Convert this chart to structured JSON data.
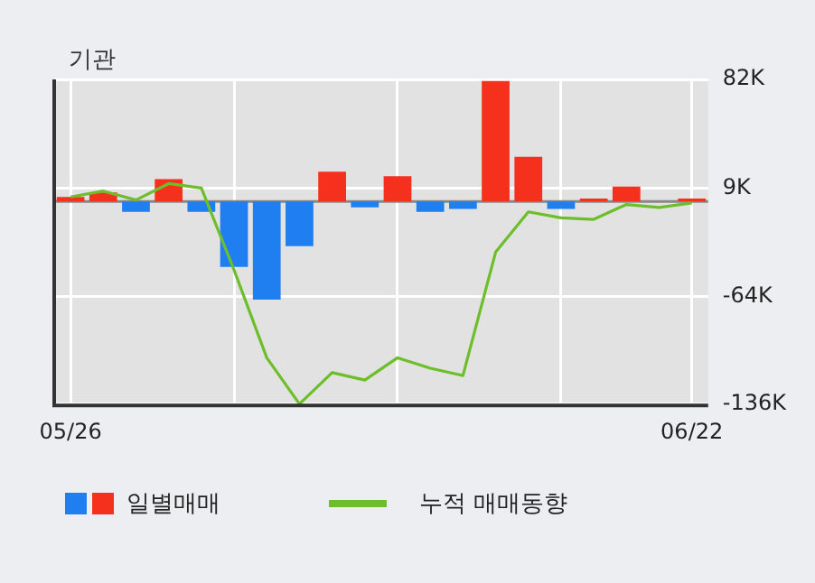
{
  "chart_data": {
    "type": "bar",
    "title": "기관",
    "categories": [
      "05/26",
      null,
      null,
      null,
      null,
      null,
      null,
      null,
      null,
      null,
      null,
      null,
      null,
      null,
      null,
      null,
      null,
      null,
      null,
      "06/22"
    ],
    "series": [
      {
        "name": "일별매매",
        "colors": [
          "#f5311d",
          "#f5311d",
          "#1f7ff0",
          "#f5311d",
          "#1f7ff0",
          "#1f7ff0",
          "#1f7ff0",
          "#1f7ff0",
          "#f5311d",
          "#1f7ff0",
          "#f5311d",
          "#1f7ff0",
          "#1f7ff0",
          "#f5311d",
          "#f5311d",
          "#1f7ff0",
          "#f5311d",
          "#f5311d",
          "#f5311d",
          "#f5311d"
        ],
        "values": [
          3,
          6,
          -7,
          15,
          -7,
          -44,
          -66,
          -30,
          20,
          -4,
          17,
          -7,
          -5,
          81,
          30,
          -5,
          2,
          10,
          0,
          2
        ]
      },
      {
        "name": "누적 매매동향",
        "type": "line",
        "color": "#6cbf2a",
        "values": [
          3,
          7,
          1,
          12,
          9,
          -46,
          -105,
          -136,
          -115,
          -120,
          -105,
          -112,
          -117,
          -34,
          -7,
          -11,
          -12,
          -2,
          -4,
          -1
        ]
      }
    ],
    "ylim": [
      -137,
      82
    ],
    "yticks": [
      {
        "value": 82,
        "label": "82K"
      },
      {
        "value": 9,
        "label": "9K"
      },
      {
        "value": -64,
        "label": "-64K"
      },
      {
        "value": -136,
        "label": "-136K"
      }
    ],
    "grid": true,
    "legend": "bottom",
    "marker": "none"
  }
}
